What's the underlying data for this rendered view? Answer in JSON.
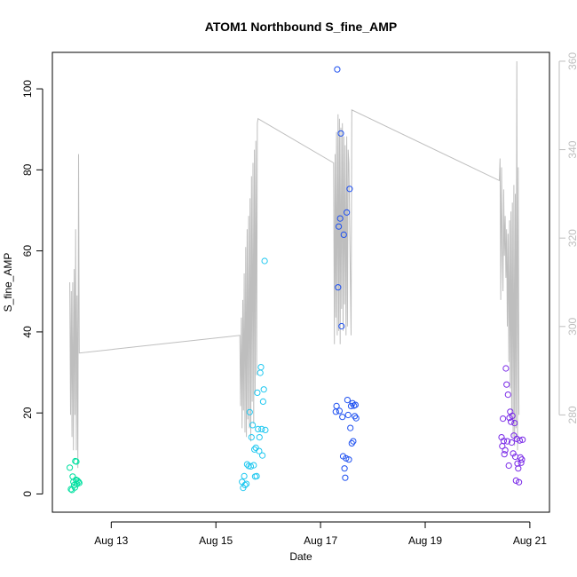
{
  "chart_data": {
    "type": "scatter",
    "title": "ATOM1 Northbound S_fine_AMP",
    "xlabel": "Date",
    "ylabel": "S_fine_AMP",
    "xlim": [
      "2024-08-11T21:00",
      "2024-08-21T09:00"
    ],
    "ylim": [
      -4.5,
      109
    ],
    "y2lim": [
      258,
      362
    ],
    "x_ticks": [
      {
        "date": "2024-08-13T00:00",
        "label": "Aug 13"
      },
      {
        "date": "2024-08-15T00:00",
        "label": "Aug 15"
      },
      {
        "date": "2024-08-17T00:00",
        "label": "Aug 17"
      },
      {
        "date": "2024-08-19T00:00",
        "label": "Aug 19"
      },
      {
        "date": "2024-08-21T00:00",
        "label": "Aug 21"
      }
    ],
    "y_ticks": [
      0,
      20,
      40,
      60,
      80,
      100
    ],
    "y2_ticks": [
      280,
      300,
      320,
      340,
      360
    ],
    "grid": false,
    "series": [
      {
        "color": "#00E0A0",
        "points": [
          [
            "2024-08-12T05:00",
            6.5
          ],
          [
            "2024-08-12T05:30",
            1.2
          ],
          [
            "2024-08-12T06:00",
            1.0
          ],
          [
            "2024-08-12T06:20",
            4.3
          ],
          [
            "2024-08-12T06:40",
            3.0
          ],
          [
            "2024-08-12T07:00",
            2.2
          ],
          [
            "2024-08-12T07:20",
            1.6
          ],
          [
            "2024-08-12T07:30",
            8.1
          ],
          [
            "2024-08-12T07:50",
            3.5
          ],
          [
            "2024-08-12T08:00",
            8.0
          ],
          [
            "2024-08-12T08:10",
            2.4
          ],
          [
            "2024-08-12T08:30",
            3.3
          ],
          [
            "2024-08-12T09:00",
            3.0
          ],
          [
            "2024-08-12T09:20",
            2.7
          ]
        ]
      },
      {
        "color": "#20C8F0",
        "points": [
          [
            "2024-08-15T12:00",
            3.0
          ],
          [
            "2024-08-15T12:30",
            1.5
          ],
          [
            "2024-08-15T13:00",
            4.4
          ],
          [
            "2024-08-15T13:20",
            2.2
          ],
          [
            "2024-08-15T14:00",
            2.5
          ],
          [
            "2024-08-15T14:20",
            7.3
          ],
          [
            "2024-08-15T15:00",
            6.9
          ],
          [
            "2024-08-15T15:30",
            20.2
          ],
          [
            "2024-08-15T16:00",
            6.8
          ],
          [
            "2024-08-15T16:20",
            14.0
          ],
          [
            "2024-08-15T16:50",
            17.0
          ],
          [
            "2024-08-15T17:20",
            7.1
          ],
          [
            "2024-08-15T17:40",
            11.0
          ],
          [
            "2024-08-15T18:00",
            4.3
          ],
          [
            "2024-08-15T18:20",
            11.4
          ],
          [
            "2024-08-15T18:40",
            4.4
          ],
          [
            "2024-08-15T19:00",
            25.0
          ],
          [
            "2024-08-15T19:20",
            16.0
          ],
          [
            "2024-08-15T19:50",
            10.6
          ],
          [
            "2024-08-15T20:00",
            14.0
          ],
          [
            "2024-08-15T20:20",
            29.9
          ],
          [
            "2024-08-15T20:40",
            31.3
          ],
          [
            "2024-08-15T21:00",
            16.0
          ],
          [
            "2024-08-15T21:20",
            9.5
          ],
          [
            "2024-08-15T21:40",
            22.8
          ],
          [
            "2024-08-15T22:00",
            25.8
          ],
          [
            "2024-08-15T22:20",
            57.5
          ],
          [
            "2024-08-15T22:40",
            15.8
          ]
        ]
      },
      {
        "color": "#1E50F0",
        "points": [
          [
            "2024-08-17T07:00",
            20.3
          ],
          [
            "2024-08-17T07:20",
            21.7
          ],
          [
            "2024-08-17T07:40",
            104.8
          ],
          [
            "2024-08-17T08:00",
            51.0
          ],
          [
            "2024-08-17T08:20",
            66.0
          ],
          [
            "2024-08-17T08:40",
            20.5
          ],
          [
            "2024-08-17T09:00",
            68.0
          ],
          [
            "2024-08-17T09:20",
            89.0
          ],
          [
            "2024-08-17T09:40",
            41.4
          ],
          [
            "2024-08-17T10:00",
            19.0
          ],
          [
            "2024-08-17T10:20",
            9.3
          ],
          [
            "2024-08-17T10:40",
            64.0
          ],
          [
            "2024-08-17T11:00",
            6.3
          ],
          [
            "2024-08-17T11:20",
            4.0
          ],
          [
            "2024-08-17T11:40",
            8.8
          ],
          [
            "2024-08-17T12:00",
            69.5
          ],
          [
            "2024-08-17T12:20",
            23.2
          ],
          [
            "2024-08-17T12:40",
            19.5
          ],
          [
            "2024-08-17T13:00",
            8.5
          ],
          [
            "2024-08-17T13:20",
            75.3
          ],
          [
            "2024-08-17T13:40",
            16.3
          ],
          [
            "2024-08-17T14:00",
            21.7
          ],
          [
            "2024-08-17T14:20",
            12.5
          ],
          [
            "2024-08-17T14:40",
            22.4
          ],
          [
            "2024-08-17T15:00",
            13.0
          ],
          [
            "2024-08-17T15:20",
            21.8
          ],
          [
            "2024-08-17T15:40",
            19.2
          ],
          [
            "2024-08-17T16:00",
            22.0
          ],
          [
            "2024-08-17T16:20",
            18.7
          ]
        ]
      },
      {
        "color": "#7A2BE8",
        "points": [
          [
            "2024-08-20T11:00",
            14.0
          ],
          [
            "2024-08-20T11:20",
            11.8
          ],
          [
            "2024-08-20T11:40",
            18.6
          ],
          [
            "2024-08-20T12:00",
            13.1
          ],
          [
            "2024-08-20T12:20",
            9.8
          ],
          [
            "2024-08-20T12:40",
            10.8
          ],
          [
            "2024-08-20T13:00",
            31.0
          ],
          [
            "2024-08-20T13:20",
            27.0
          ],
          [
            "2024-08-20T13:40",
            13.0
          ],
          [
            "2024-08-20T14:00",
            24.5
          ],
          [
            "2024-08-20T14:20",
            7.0
          ],
          [
            "2024-08-20T14:40",
            18.8
          ],
          [
            "2024-08-20T15:00",
            20.3
          ],
          [
            "2024-08-20T15:20",
            17.8
          ],
          [
            "2024-08-20T15:40",
            12.7
          ],
          [
            "2024-08-20T16:00",
            19.3
          ],
          [
            "2024-08-20T16:20",
            10.0
          ],
          [
            "2024-08-20T16:40",
            14.4
          ],
          [
            "2024-08-20T17:00",
            17.5
          ],
          [
            "2024-08-20T17:20",
            9.2
          ],
          [
            "2024-08-20T17:40",
            3.3
          ],
          [
            "2024-08-20T18:00",
            13.6
          ],
          [
            "2024-08-20T18:20",
            7.5
          ],
          [
            "2024-08-20T18:40",
            6.3
          ],
          [
            "2024-08-20T19:00",
            2.9
          ],
          [
            "2024-08-20T19:20",
            13.2
          ],
          [
            "2024-08-20T19:40",
            9.0
          ],
          [
            "2024-08-20T20:00",
            7.7
          ],
          [
            "2024-08-20T20:20",
            8.5
          ],
          [
            "2024-08-20T20:40",
            13.4
          ]
        ]
      }
    ],
    "secondary_line": {
      "color": "#bebebe",
      "points": [
        [
          "2024-08-12T05:00",
          310
        ],
        [
          "2024-08-12T05:20",
          280
        ],
        [
          "2024-08-12T05:40",
          308
        ],
        [
          "2024-08-12T06:00",
          275
        ],
        [
          "2024-08-12T06:20",
          310
        ],
        [
          "2024-08-12T06:40",
          272
        ],
        [
          "2024-08-12T07:00",
          313
        ],
        [
          "2024-08-12T07:20",
          280
        ],
        [
          "2024-08-12T07:40",
          322
        ],
        [
          "2024-08-12T08:00",
          272
        ],
        [
          "2024-08-12T08:20",
          307
        ],
        [
          "2024-08-12T08:40",
          268
        ],
        [
          "2024-08-12T09:00",
          339
        ],
        [
          "2024-08-12T09:20",
          294
        ],
        [
          "2024-08-15T11:00",
          298
        ],
        [
          "2024-08-15T11:20",
          282
        ],
        [
          "2024-08-15T11:40",
          302
        ],
        [
          "2024-08-15T12:00",
          277
        ],
        [
          "2024-08-15T12:20",
          306
        ],
        [
          "2024-08-15T12:40",
          281
        ],
        [
          "2024-08-15T13:00",
          312
        ],
        [
          "2024-08-15T13:20",
          276
        ],
        [
          "2024-08-15T13:40",
          318
        ],
        [
          "2024-08-15T14:00",
          275
        ],
        [
          "2024-08-15T14:20",
          322
        ],
        [
          "2024-08-15T14:40",
          279
        ],
        [
          "2024-08-15T15:00",
          325
        ],
        [
          "2024-08-15T15:20",
          277
        ],
        [
          "2024-08-15T15:40",
          329
        ],
        [
          "2024-08-15T16:00",
          274
        ],
        [
          "2024-08-15T16:20",
          334
        ],
        [
          "2024-08-15T16:40",
          283
        ],
        [
          "2024-08-15T17:00",
          337
        ],
        [
          "2024-08-15T17:20",
          278
        ],
        [
          "2024-08-15T17:40",
          340
        ],
        [
          "2024-08-15T18:00",
          285
        ],
        [
          "2024-08-15T18:20",
          342
        ],
        [
          "2024-08-15T18:40",
          289
        ],
        [
          "2024-08-15T19:00",
          346
        ],
        [
          "2024-08-15T19:20",
          347
        ],
        [
          "2024-08-17T06:00",
          337
        ],
        [
          "2024-08-17T06:20",
          296
        ],
        [
          "2024-08-17T06:40",
          339
        ],
        [
          "2024-08-17T07:00",
          302
        ],
        [
          "2024-08-17T07:20",
          344
        ],
        [
          "2024-08-17T07:40",
          298
        ],
        [
          "2024-08-17T08:00",
          348
        ],
        [
          "2024-08-17T08:20",
          299
        ],
        [
          "2024-08-17T08:40",
          347
        ],
        [
          "2024-08-17T09:00",
          296
        ],
        [
          "2024-08-17T09:20",
          345
        ],
        [
          "2024-08-17T09:40",
          304
        ],
        [
          "2024-08-17T10:00",
          346
        ],
        [
          "2024-08-17T10:20",
          299
        ],
        [
          "2024-08-17T10:40",
          343
        ],
        [
          "2024-08-17T11:00",
          305
        ],
        [
          "2024-08-17T11:20",
          341
        ],
        [
          "2024-08-17T11:40",
          298
        ],
        [
          "2024-08-17T12:00",
          343
        ],
        [
          "2024-08-17T12:20",
          300
        ],
        [
          "2024-08-17T12:40",
          340
        ],
        [
          "2024-08-17T13:00",
          337
        ],
        [
          "2024-08-17T14:00",
          298
        ],
        [
          "2024-08-17T14:20",
          349
        ],
        [
          "2024-08-20T10:00",
          333
        ],
        [
          "2024-08-20T10:20",
          338
        ],
        [
          "2024-08-20T10:40",
          306
        ],
        [
          "2024-08-20T11:00",
          336
        ],
        [
          "2024-08-20T11:20",
          318
        ],
        [
          "2024-08-20T11:40",
          308
        ],
        [
          "2024-08-20T12:00",
          331
        ],
        [
          "2024-08-20T12:20",
          316
        ],
        [
          "2024-08-20T12:40",
          325
        ],
        [
          "2024-08-20T13:00",
          311
        ],
        [
          "2024-08-20T13:20",
          322
        ],
        [
          "2024-08-20T13:40",
          300
        ],
        [
          "2024-08-20T14:00",
          321
        ],
        [
          "2024-08-20T14:20",
          292
        ],
        [
          "2024-08-20T14:40",
          324
        ],
        [
          "2024-08-20T15:00",
          286
        ],
        [
          "2024-08-20T15:20",
          326
        ],
        [
          "2024-08-20T15:40",
          280
        ],
        [
          "2024-08-20T16:00",
          328
        ],
        [
          "2024-08-20T16:20",
          275
        ],
        [
          "2024-08-20T16:40",
          332
        ],
        [
          "2024-08-20T17:00",
          273
        ],
        [
          "2024-08-20T17:20",
          330
        ],
        [
          "2024-08-20T17:40",
          277
        ],
        [
          "2024-08-20T18:00",
          360
        ],
        [
          "2024-08-20T18:20",
          272
        ],
        [
          "2024-08-20T18:40",
          336
        ],
        [
          "2024-08-20T19:00",
          280
        ]
      ]
    }
  }
}
